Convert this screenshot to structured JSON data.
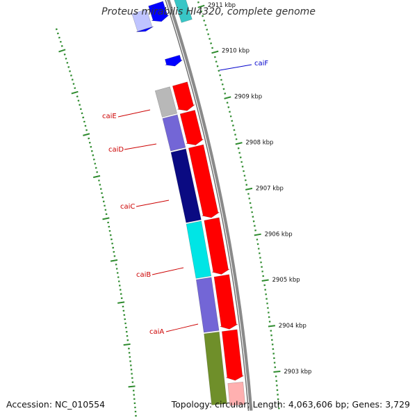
{
  "title": "Proteus mirabilis HI4320, complete genome",
  "accession": "Accession: NC_010554",
  "summary": "Topology: circular; Length: 4,063,606 bp; Genes: 3,729",
  "colors": {
    "backbone": "#8a8a8a",
    "tick": "#2e8b2e",
    "label_red": "#cc0000",
    "label_blue": "#0000cc",
    "red": "#ff0000",
    "blue": "#0000ff",
    "light_blue": "#bfc4ff",
    "cyan": "#00e5e5",
    "teal": "#38c6c6",
    "grey": "#b8b8b8",
    "violet": "#7366d6",
    "navy": "#0a0a82",
    "olive": "#6f8f2a",
    "pink": "#ffb0b0"
  },
  "scale": {
    "unit": "kbp",
    "labels": [
      {
        "kbp": 2911,
        "text": "2911 kbp"
      },
      {
        "kbp": 2910,
        "text": "2910 kbp"
      },
      {
        "kbp": 2909,
        "text": "2909 kbp"
      },
      {
        "kbp": 2908,
        "text": "2908 kbp"
      },
      {
        "kbp": 2907,
        "text": "2907 kbp"
      },
      {
        "kbp": 2906,
        "text": "2906 kbp"
      },
      {
        "kbp": 2905,
        "text": "2905 kbp"
      },
      {
        "kbp": 2904,
        "text": "2904 kbp"
      },
      {
        "kbp": 2903,
        "text": "2903 kbp"
      }
    ]
  },
  "genes": [
    {
      "label": "caiF",
      "color": "blue"
    },
    {
      "label": "caiE",
      "color": "red"
    },
    {
      "label": "caiD",
      "color": "red"
    },
    {
      "label": "caiC",
      "color": "red"
    },
    {
      "label": "caiB",
      "color": "red"
    },
    {
      "label": "caiA",
      "color": "red"
    }
  ],
  "features": [
    {
      "ring": "cds",
      "start": 2911.35,
      "end": 2910.95,
      "color": "blue",
      "shape": "arrow"
    },
    {
      "ring": "cds",
      "start": 2910.15,
      "end": 2909.95,
      "color": "blue",
      "shape": "arrow"
    },
    {
      "ring": "cds",
      "start": 2909.55,
      "end": 2908.95,
      "color": "red",
      "shape": "arrow"
    },
    {
      "ring": "cds",
      "start": 2908.92,
      "end": 2908.18,
      "color": "red",
      "shape": "arrow"
    },
    {
      "ring": "cds",
      "start": 2908.15,
      "end": 2906.55,
      "color": "red",
      "shape": "arrow"
    },
    {
      "ring": "cds",
      "start": 2906.52,
      "end": 2905.28,
      "color": "red",
      "shape": "arrow"
    },
    {
      "ring": "cds",
      "start": 2905.25,
      "end": 2904.05,
      "color": "red",
      "shape": "arrow"
    },
    {
      "ring": "cds",
      "start": 2904.02,
      "end": 2902.9,
      "color": "red",
      "shape": "arrow"
    },
    {
      "ring": "cds",
      "start": 2902.85,
      "end": 2902.35,
      "color": "pink",
      "shape": "box"
    },
    {
      "ring": "outer",
      "start": 2911.3,
      "end": 2910.9,
      "color": "light_blue",
      "shape": "box"
    },
    {
      "ring": "outer",
      "start": 2910.9,
      "end": 2910.85,
      "color": "blue",
      "shape": "arrow"
    },
    {
      "ring": "outer",
      "start": 2909.55,
      "end": 2908.95,
      "color": "grey",
      "shape": "box"
    },
    {
      "ring": "outer",
      "start": 2908.92,
      "end": 2908.18,
      "color": "violet",
      "shape": "box"
    },
    {
      "ring": "outer",
      "start": 2908.15,
      "end": 2906.55,
      "color": "navy",
      "shape": "box"
    },
    {
      "ring": "outer",
      "start": 2906.52,
      "end": 2905.28,
      "color": "cyan",
      "shape": "box"
    },
    {
      "ring": "outer",
      "start": 2905.25,
      "end": 2904.05,
      "color": "violet",
      "shape": "box"
    },
    {
      "ring": "outer",
      "start": 2904.02,
      "end": 2902.4,
      "color": "olive",
      "shape": "box"
    },
    {
      "ring": "inner",
      "start": 2911.3,
      "end": 2910.8,
      "color": "teal",
      "shape": "box"
    }
  ]
}
